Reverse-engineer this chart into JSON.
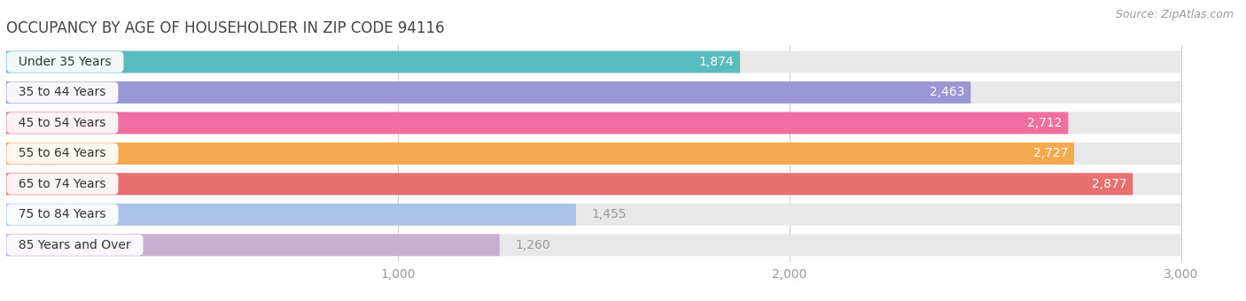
{
  "title": "OCCUPANCY BY AGE OF HOUSEHOLDER IN ZIP CODE 94116",
  "source": "Source: ZipAtlas.com",
  "categories": [
    "Under 35 Years",
    "35 to 44 Years",
    "45 to 54 Years",
    "55 to 64 Years",
    "65 to 74 Years",
    "75 to 84 Years",
    "85 Years and Over"
  ],
  "values": [
    1874,
    2463,
    2712,
    2727,
    2877,
    1455,
    1260
  ],
  "bar_colors": [
    "#5bbcbf",
    "#9b97d4",
    "#f06fa0",
    "#f5a94e",
    "#e87070",
    "#aac4e8",
    "#c9aed4"
  ],
  "bar_bg_color": "#e8e8e8",
  "value_label_color_inside": "#ffffff",
  "value_label_color_outside": "#999999",
  "xlim_data": [
    0,
    3150
  ],
  "xaxis_max": 3000,
  "xticks": [
    1000,
    2000,
    3000
  ],
  "title_fontsize": 12,
  "source_fontsize": 9,
  "label_fontsize": 10,
  "value_fontsize": 10,
  "tick_fontsize": 10,
  "background_color": "#ffffff",
  "bar_height": 0.72,
  "inside_threshold": 1600,
  "bar_spacing": 1.0
}
